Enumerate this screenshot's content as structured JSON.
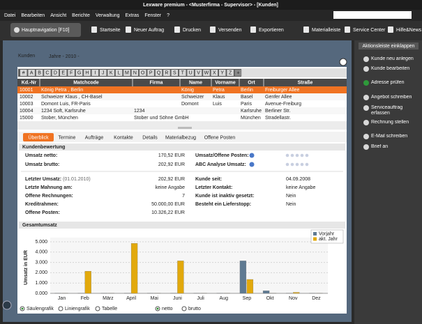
{
  "window": {
    "title": "Lexware premium - <Musterfirma - Supervisor> - [Kunden]"
  },
  "menu": [
    "Datei",
    "Bearbeiten",
    "Ansicht",
    "Berichte",
    "Verwaltung",
    "Extras",
    "Fenster",
    "?"
  ],
  "toolbar": {
    "nav_button": "Hauptnavigation [F10]",
    "items": [
      "Startseite",
      "Neuer Auftrag",
      "Drucken",
      "Versenden",
      "Exportieren",
      "Materialleiste",
      "Service Center",
      "Hilfe&News"
    ]
  },
  "sidebar": {
    "collapse": "Aktionsleiste einklappen",
    "actions": [
      "Kunde neu anlegen",
      "Kunde bearbeiten",
      "Adresse prüfen",
      "Angebot schreiben",
      "Serviceauftrag erfassen",
      "Rechnung stellen",
      "E-Mail schreiben",
      "Brief an"
    ]
  },
  "page": {
    "title": "Kunden",
    "subtitle": "Jahre - 2010 -"
  },
  "alphabet": [
    "#",
    "A",
    "B",
    "C",
    "D",
    "E",
    "F",
    "G",
    "H",
    "I",
    "J",
    "K",
    "L",
    "M",
    "N",
    "O",
    "P",
    "Q",
    "R",
    "S",
    "T",
    "U",
    "V",
    "W",
    "X",
    "Y",
    "Z",
    "+"
  ],
  "table": {
    "columns": [
      "Kd.-Nr",
      "Matchcode",
      "Firma",
      "Name",
      "Vorname",
      "Ort",
      "Straße"
    ],
    "rows": [
      {
        "kdnr": "10001",
        "matchcode": "König Petra , Berlin",
        "name": "König",
        "vorname": "Petra",
        "ort": "Berlin",
        "strasse": "Freiburger Allee"
      },
      {
        "kdnr": "10002",
        "matchcode": "Schweizer Klaus , CH-Basel",
        "name": "Schweizer",
        "vorname": "Klaus",
        "ort": "Basel",
        "strasse": "Genfer Allee"
      },
      {
        "kdnr": "10003",
        "matchcode": "Domont Luis, FR-Paris",
        "name": "Domont",
        "vorname": "Luis",
        "ort": "Paris",
        "strasse": "Avenue-Freiburg"
      },
      {
        "kdnr": "10004",
        "matchcode": "1234 Soft, Karlsruhe",
        "firma": "1234",
        "ort": "Karlsruhe",
        "strasse": "Berliner Str."
      },
      {
        "kdnr": "15000",
        "matchcode": "Stober, München",
        "firma": "Stober und Söhne GmbH",
        "ort": "München",
        "strasse": "Stradellastr."
      }
    ]
  },
  "tabs": [
    "Überblick",
    "Termine",
    "Aufträge",
    "Kontakte",
    "Details",
    "Materialbezug",
    "Offene Posten"
  ],
  "rating": {
    "heading": "Kundenbewertung",
    "left1": [
      [
        "Umsatz netto:",
        "170,52 EUR"
      ],
      [
        "Umsatz brutto:",
        "202,92 EUR"
      ]
    ],
    "right1": [
      "Umsatz/Offene Posten:",
      "ABC Analyse Umsatz:"
    ],
    "last_sale": {
      "label": "Letzter Umsatz:",
      "date": "(01.01.2010)",
      "value": "202,92 EUR"
    },
    "left2": [
      [
        "Letzte Mahnung am:",
        "keine Angabe"
      ],
      [
        "Offene Rechnungen:",
        "7"
      ],
      [
        "Kreditrahmen:",
        "50.000,00 EUR"
      ],
      [
        "Offene Posten:",
        "10.326,22 EUR"
      ]
    ],
    "right2": [
      [
        "Kunde seit:",
        "04.09.2008"
      ],
      [
        "Letzter Kontakt:",
        "keine Angabe"
      ],
      [
        "Kunde ist inaktiv gesetzt:",
        "Nein"
      ],
      [
        "Besteht ein Lieferstopp:",
        "Nein"
      ]
    ]
  },
  "chart_data": {
    "type": "bar",
    "title": "Gesamtumsatz",
    "y_label": "Umsatz in EUR",
    "categories": [
      "Jan",
      "Feb",
      "März",
      "April",
      "Mai",
      "Juni",
      "Juli",
      "Aug",
      "Sep",
      "Okt",
      "Nov",
      "Dez"
    ],
    "series": [
      {
        "name": "Vorjahr",
        "color": "#5f7a92",
        "values": [
          20,
          20,
          20,
          20,
          20,
          20,
          20,
          20,
          3150,
          250,
          20,
          20
        ]
      },
      {
        "name": "akt. Jahr",
        "color": "#e2a90c",
        "values": [
          20,
          2150,
          20,
          4850,
          20,
          3150,
          20,
          20,
          1350,
          20,
          100,
          20
        ]
      }
    ],
    "ylim": [
      0,
      5000
    ],
    "yticks": [
      {
        "value": 0,
        "label": "0.000"
      },
      {
        "value": 1000,
        "label": "1.000"
      },
      {
        "value": 2000,
        "label": "2.000"
      },
      {
        "value": 3000,
        "label": "3.000"
      },
      {
        "value": 4000,
        "label": "4.000"
      },
      {
        "value": 5000,
        "label": "5.000"
      }
    ],
    "grid": true,
    "legend": "top-right"
  },
  "chart_options": [
    "Säulengrafik",
    "Liniengrafik",
    "Tabelle",
    "netto",
    "brutto"
  ]
}
